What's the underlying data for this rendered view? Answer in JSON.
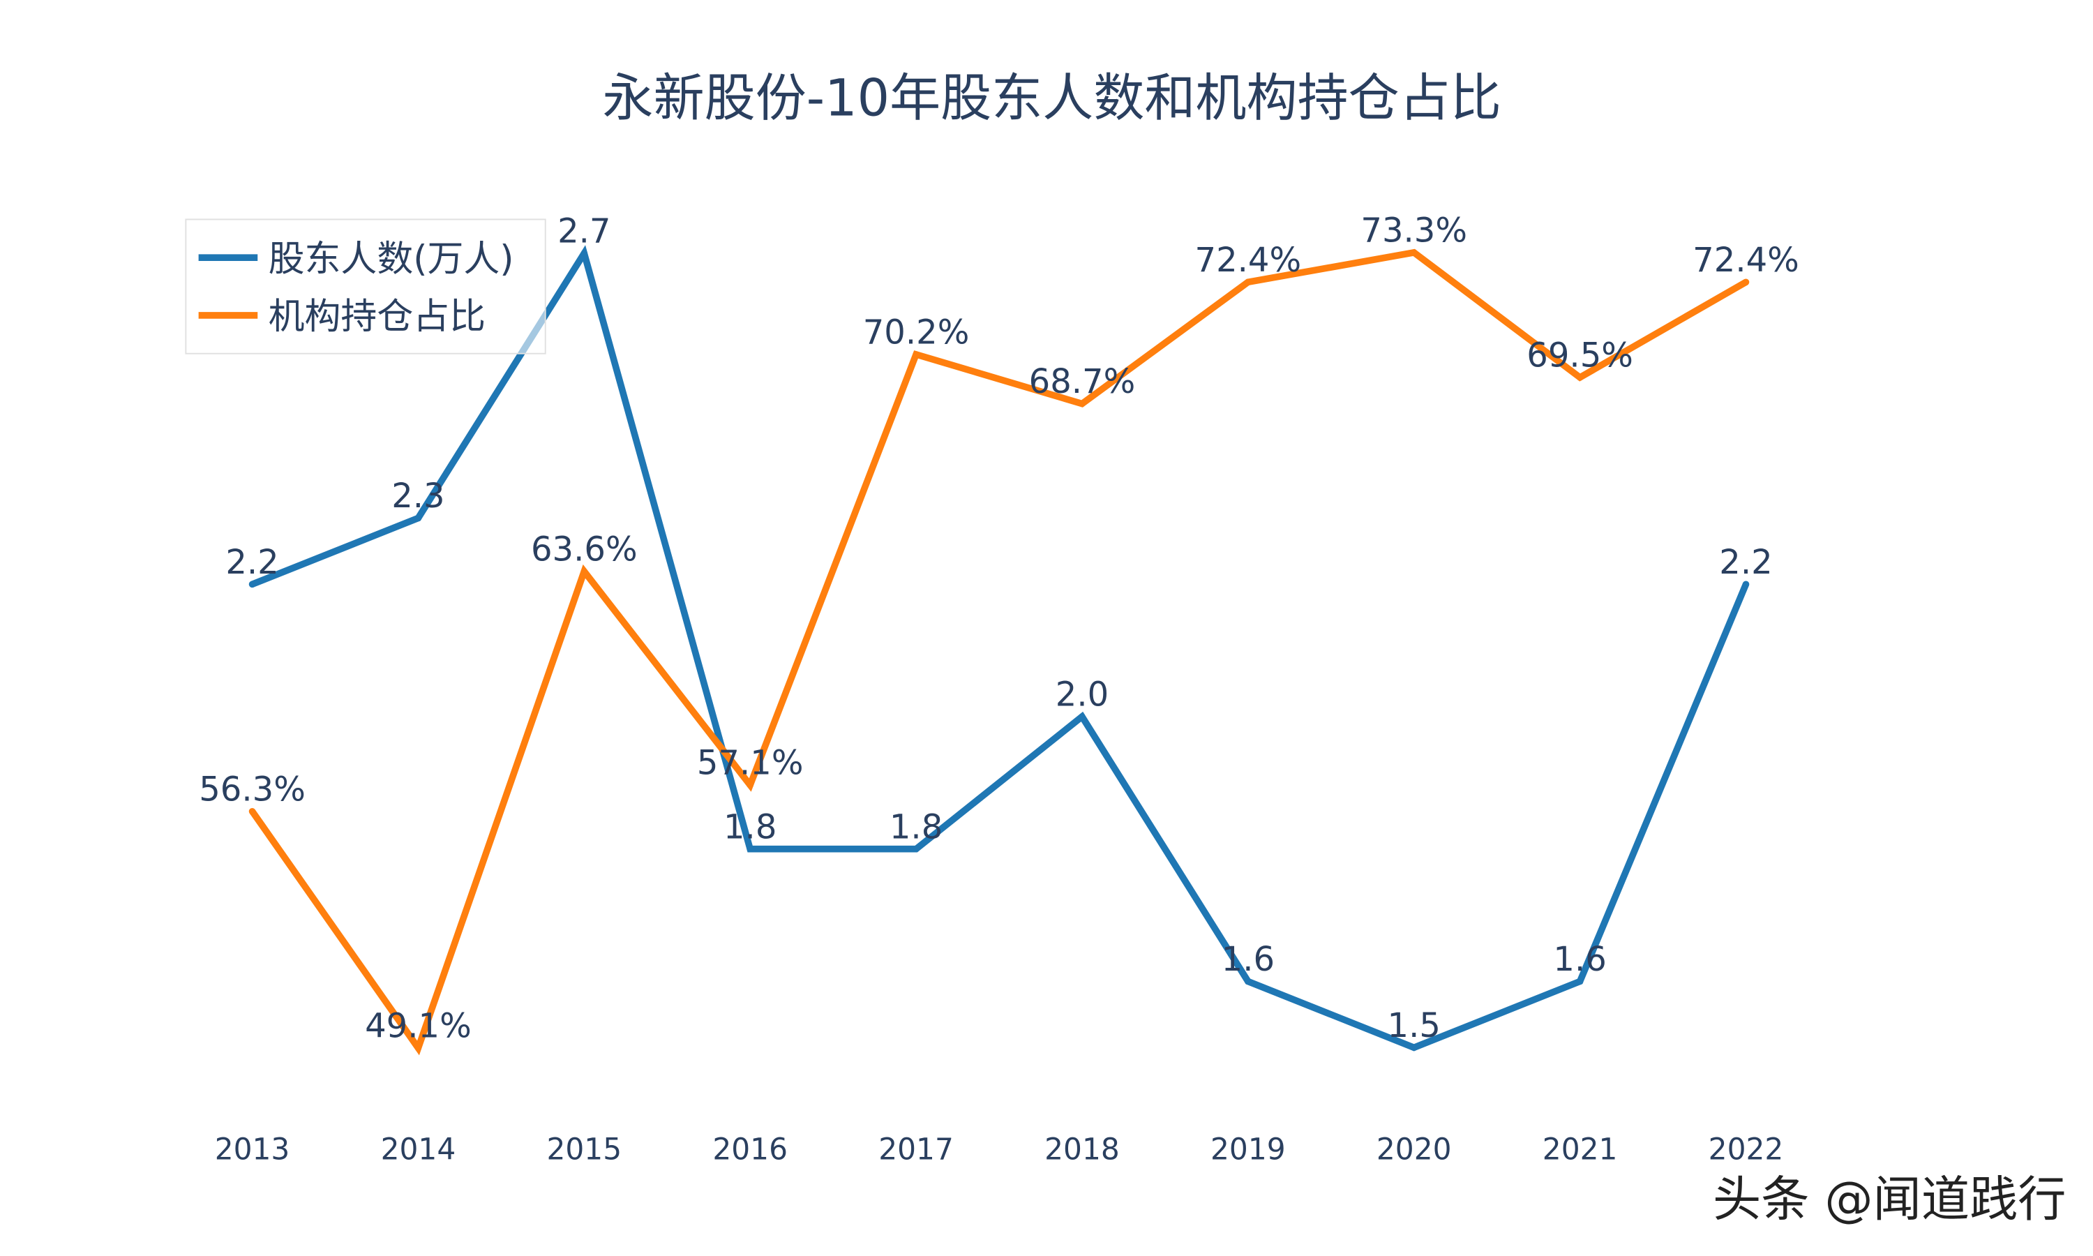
{
  "chart_data": {
    "type": "line",
    "title": "永新股份-10年股东人数和机构持仓占比",
    "categories": [
      "2013",
      "2014",
      "2015",
      "2016",
      "2017",
      "2018",
      "2019",
      "2020",
      "2021",
      "2022"
    ],
    "series": [
      {
        "name": "股东人数(万人)",
        "color": "#1f77b4",
        "axis": "y1",
        "values": [
          2.2,
          2.3,
          2.7,
          1.8,
          1.8,
          2.0,
          1.6,
          1.5,
          1.6,
          2.2
        ],
        "labels": [
          "2.2",
          "2.3",
          "2.7",
          "1.8",
          "1.8",
          "2.0",
          "1.6",
          "1.5",
          "1.6",
          "2.2"
        ]
      },
      {
        "name": "机构持仓占比",
        "color": "#ff7f0e",
        "axis": "y2",
        "values": [
          56.3,
          49.1,
          63.6,
          57.1,
          70.2,
          68.7,
          72.4,
          73.3,
          69.5,
          72.4
        ],
        "labels": [
          "56.3%",
          "49.1%",
          "63.6%",
          "57.1%",
          "70.2%",
          "68.7%",
          "72.4%",
          "73.3%",
          "69.5%",
          "72.4%"
        ]
      }
    ],
    "y1_range": [
      1.4,
      2.88
    ],
    "y2_range": [
      47.1,
      76.9
    ],
    "y_axes_visible": false,
    "grid": false,
    "legend": "top-left"
  },
  "watermark": "头条 @闻道践行"
}
